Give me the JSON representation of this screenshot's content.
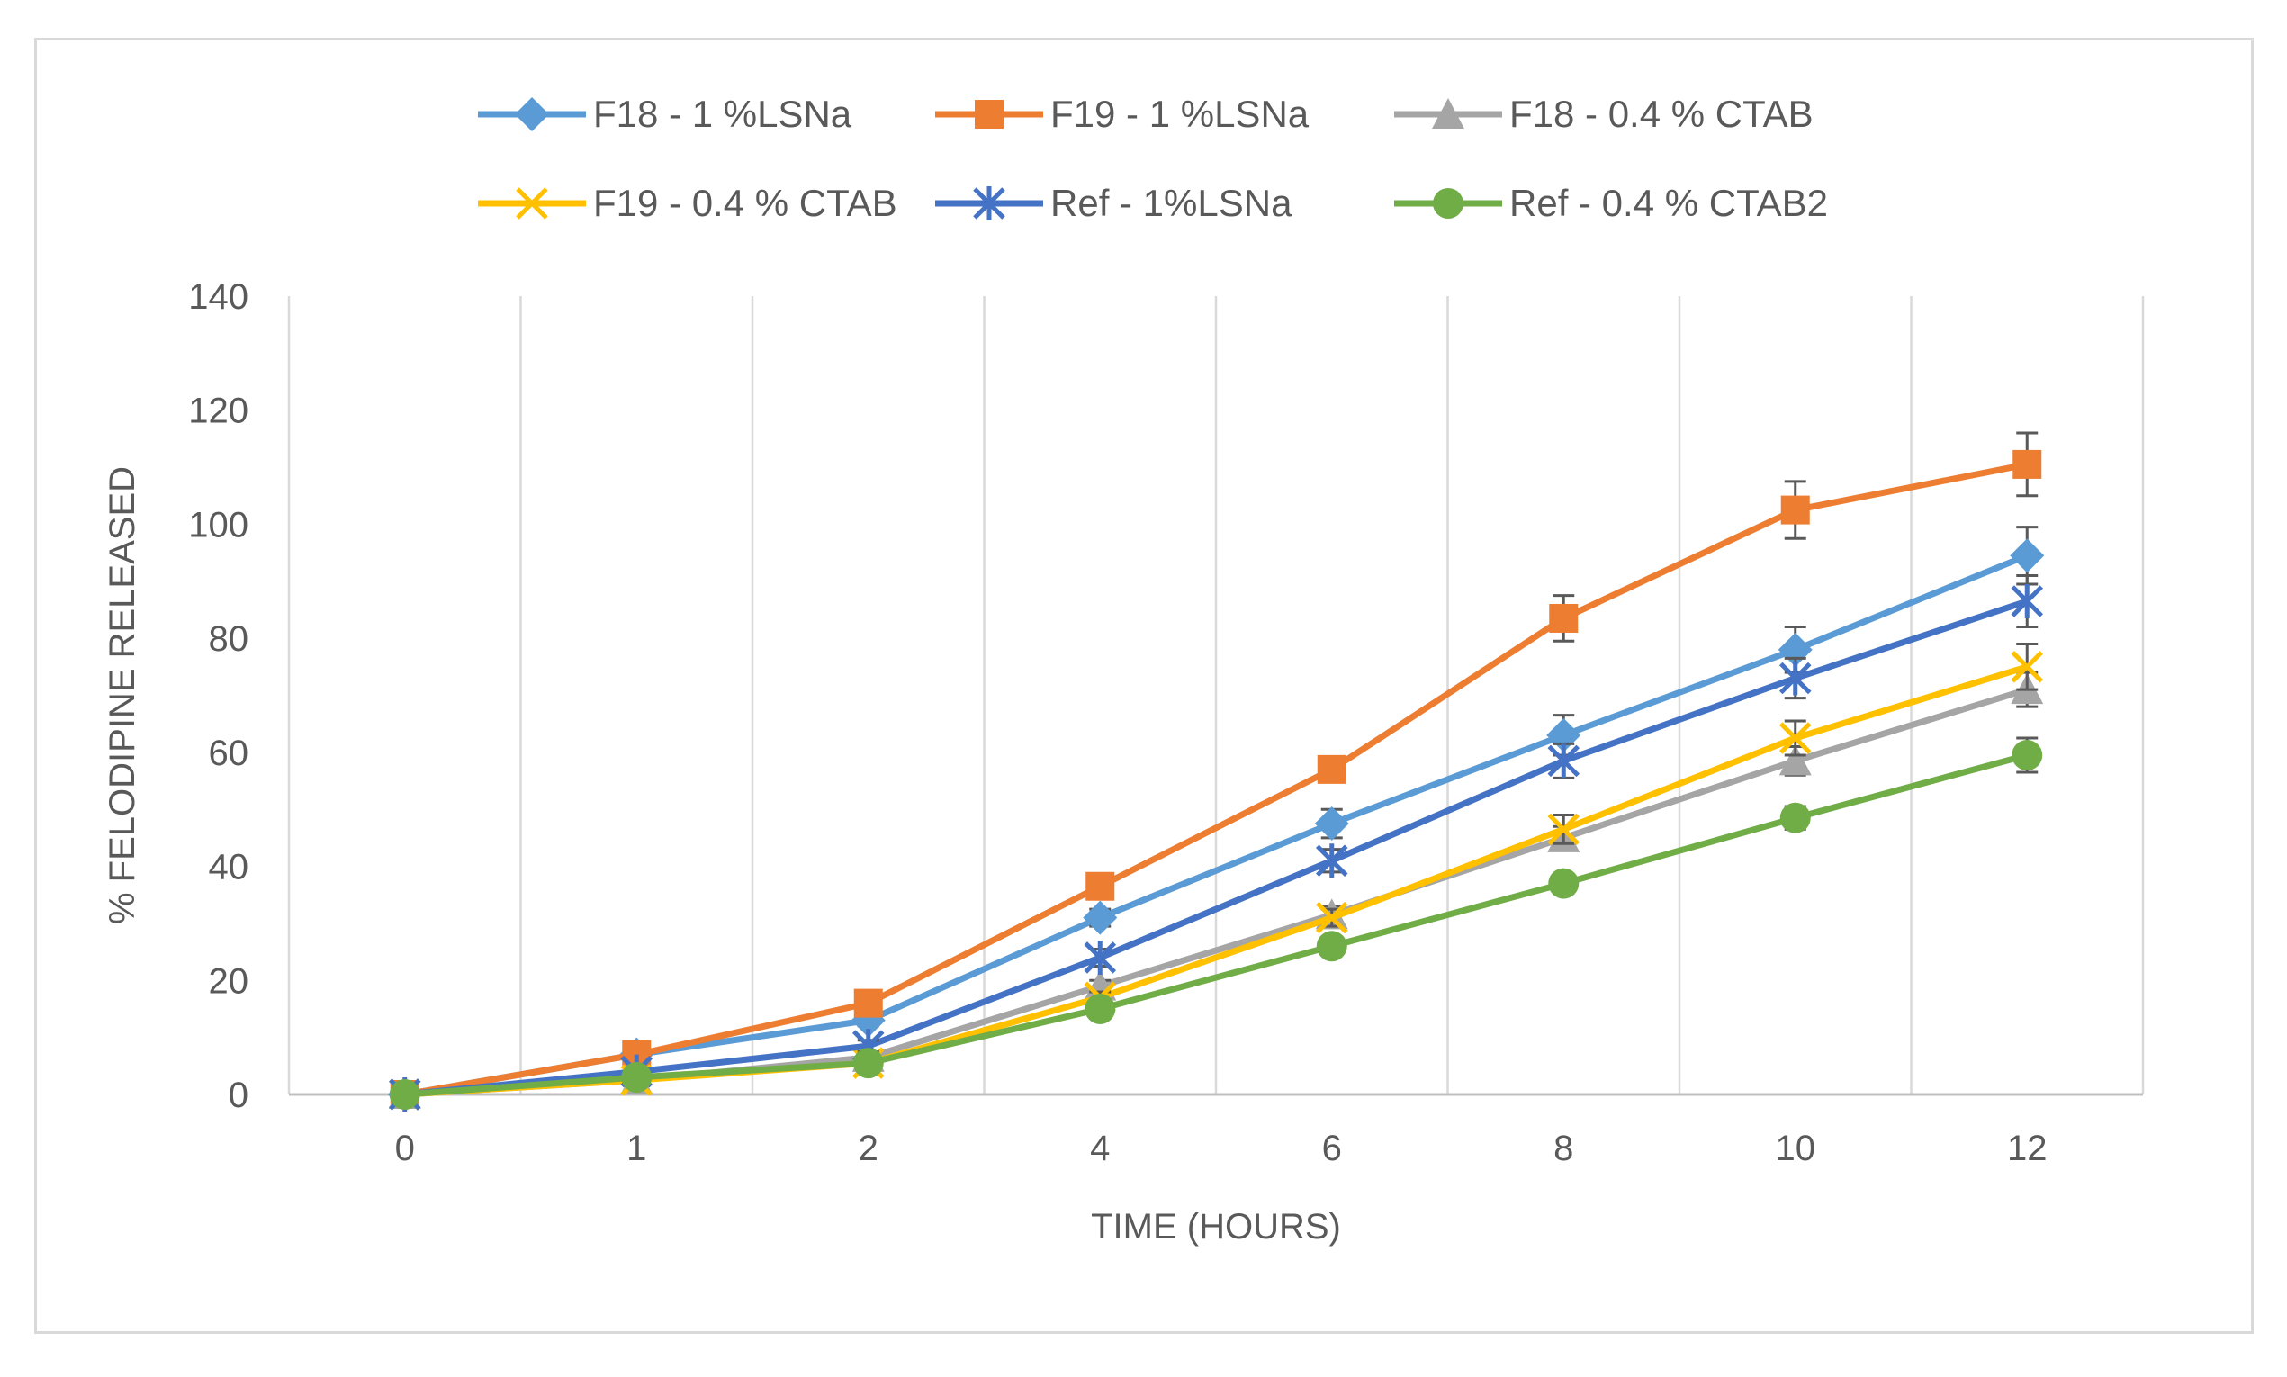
{
  "chart_data": {
    "type": "line",
    "title": "",
    "xlabel": "TIME (HOURS)",
    "ylabel": "% FELODIPINE RELEASED",
    "categories": [
      "0",
      "1",
      "2",
      "4",
      "6",
      "8",
      "10",
      "12"
    ],
    "ylim": [
      0,
      140
    ],
    "yticks": [
      0,
      20,
      40,
      60,
      80,
      100,
      120,
      140
    ],
    "grid": "vertical",
    "legend_position": "top",
    "series": [
      {
        "name": "F18 - 1 %LSNa",
        "color": "#5B9BD5",
        "marker": "diamond",
        "values": [
          0,
          7,
          13,
          31,
          47.5,
          63,
          78,
          94.5
        ],
        "errors": [
          0,
          0.5,
          1,
          1.5,
          2.5,
          3.5,
          4,
          5
        ]
      },
      {
        "name": "F19 - 1 %LSNa",
        "color": "#ED7D31",
        "marker": "square",
        "values": [
          0,
          7,
          16,
          36.5,
          57,
          83.5,
          102.5,
          110.5
        ],
        "errors": [
          0,
          0.5,
          1,
          1.5,
          2,
          4,
          5,
          5.5
        ]
      },
      {
        "name": "F18 - 0.4 % CTAB",
        "color": "#A5A5A5",
        "marker": "triangle",
        "values": [
          0,
          2.5,
          6.5,
          19,
          31.5,
          45,
          58.5,
          71
        ],
        "errors": [
          0,
          0.3,
          0.5,
          1,
          1.5,
          2,
          2.5,
          3
        ]
      },
      {
        "name": "F19 - 0.4 % CTAB",
        "color": "#FFC000",
        "marker": "x",
        "values": [
          0,
          2.5,
          5.5,
          17,
          31,
          46.5,
          62.5,
          75
        ],
        "errors": [
          0,
          0.3,
          0.5,
          1,
          1.5,
          2.5,
          3,
          4
        ]
      },
      {
        "name": "Ref - 1%LSNa",
        "color": "#4472C4",
        "marker": "star",
        "values": [
          0,
          4,
          8.5,
          24,
          41,
          58.5,
          73,
          86.5
        ],
        "errors": [
          0,
          0.3,
          1,
          1.5,
          2,
          3,
          3.5,
          4.5
        ]
      },
      {
        "name": "Ref - 0.4 % CTAB2",
        "color": "#70AD47",
        "marker": "circle",
        "values": [
          0,
          3,
          5.5,
          15,
          26,
          37,
          48.5,
          59.5
        ],
        "errors": [
          0,
          0.3,
          0.5,
          1,
          1.5,
          1.5,
          2,
          3
        ]
      }
    ]
  }
}
